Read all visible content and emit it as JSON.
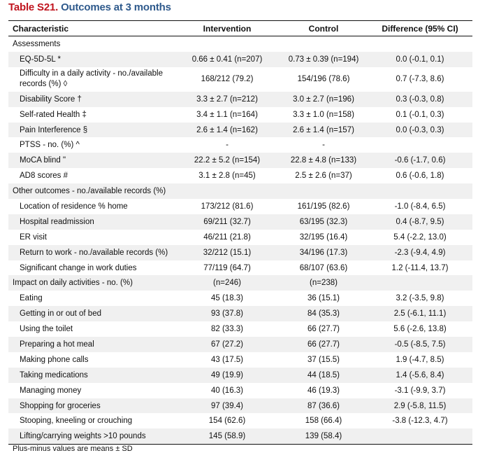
{
  "title": {
    "label": "Table S21.",
    "text": "Outcomes at 3 months"
  },
  "columns": [
    "Characteristic",
    "Intervention",
    "Control",
    "Difference (95% CI)"
  ],
  "rows": [
    {
      "type": "section",
      "label": "Assessments",
      "intervention": "",
      "control": "",
      "difference": ""
    },
    {
      "label": "EQ-5D-5L *",
      "intervention": "0.66 ± 0.41 (n=207)",
      "control": "0.73 ± 0.39 (n=194)",
      "difference": "0.0 (-0.1, 0.1)"
    },
    {
      "label": "Difficulty in a daily activity - no./available records (%) ◊",
      "intervention": "168/212 (79.2)",
      "control": "154/196 (78.6)",
      "difference": "0.7 (-7.3, 8.6)",
      "tall": true
    },
    {
      "label": "Disability Score †",
      "intervention": "3.3 ± 2.7 (n=212)",
      "control": "3.0 ± 2.7 (n=196)",
      "difference": "0.3 (-0.3, 0.8)"
    },
    {
      "label": "Self-rated Health ‡",
      "intervention": "3.4 ± 1.1 (n=164)",
      "control": "3.3 ± 1.0 (n=158)",
      "difference": "0.1 (-0.1, 0.3)"
    },
    {
      "label": "Pain Interference §",
      "intervention": "2.6 ± 1.4 (n=162)",
      "control": "2.6 ± 1.4 (n=157)",
      "difference": "0.0 (-0.3, 0.3)"
    },
    {
      "label": "PTSS - no. (%) ^",
      "intervention": "-",
      "control": "-",
      "difference": ""
    },
    {
      "label": "MoCA blind \"",
      "intervention": "22.2 ± 5.2 (n=154)",
      "control": "22.8 ± 4.8 (n=133)",
      "difference": "-0.6 (-1.7, 0.6)"
    },
    {
      "label": "AD8 scores #",
      "intervention": "3.1 ± 2.8 (n=45)",
      "control": "2.5 ± 2.6 (n=37)",
      "difference": "0.6 (-0.6, 1.8)"
    },
    {
      "type": "section",
      "label": "Other outcomes - no./available records (%)",
      "intervention": "",
      "control": "",
      "difference": ""
    },
    {
      "label": "Location of residence % home",
      "intervention": "173/212 (81.6)",
      "control": "161/195 (82.6)",
      "difference": "-1.0 (-8.4, 6.5)"
    },
    {
      "label": "Hospital readmission",
      "intervention": "69/211 (32.7)",
      "control": "63/195 (32.3)",
      "difference": "0.4 (-8.7, 9.5)"
    },
    {
      "label": "ER visit",
      "intervention": "46/211 (21.8)",
      "control": "32/195 (16.4)",
      "difference": "5.4 (-2.2, 13.0)"
    },
    {
      "label": "Return to work - no./available records (%)",
      "intervention": "32/212 (15.1)",
      "control": "34/196 (17.3)",
      "difference": "-2.3 (-9.4, 4.9)"
    },
    {
      "label": "Significant change in work duties",
      "intervention": "77/119 (64.7)",
      "control": "68/107 (63.6)",
      "difference": "1.2 (-11.4, 13.7)"
    },
    {
      "type": "section",
      "label": "Impact on daily activities - no. (%)",
      "intervention": "(n=246)",
      "control": "(n=238)",
      "difference": ""
    },
    {
      "label": "Eating",
      "intervention": "45 (18.3)",
      "control": "36 (15.1)",
      "difference": "3.2 (-3.5, 9.8)"
    },
    {
      "label": "Getting in or out of bed",
      "intervention": "93 (37.8)",
      "control": "84 (35.3)",
      "difference": "2.5 (-6.1, 11.1)"
    },
    {
      "label": "Using the toilet",
      "intervention": "82 (33.3)",
      "control": "66 (27.7)",
      "difference": "5.6 (-2.6, 13.8)"
    },
    {
      "label": "Preparing a hot meal",
      "intervention": "67 (27.2)",
      "control": "66 (27.7)",
      "difference": "-0.5 (-8.5, 7.5)"
    },
    {
      "label": "Making phone calls",
      "intervention": "43 (17.5)",
      "control": "37 (15.5)",
      "difference": "1.9 (-4.7, 8.5)"
    },
    {
      "label": "Taking medications",
      "intervention": "49 (19.9)",
      "control": "44 (18.5)",
      "difference": "1.4 (-5.6, 8.4)"
    },
    {
      "label": "Managing money",
      "intervention": "40 (16.3)",
      "control": "46 (19.3)",
      "difference": "-3.1 (-9.9, 3.7)"
    },
    {
      "label": "Shopping for groceries",
      "intervention": "97 (39.4)",
      "control": "87 (36.6)",
      "difference": "2.9 (-5.8, 11.5)"
    },
    {
      "label": "Stooping, kneeling or crouching",
      "intervention": "154 (62.6)",
      "control": "158 (66.4)",
      "difference": "-3.8 (-12.3, 4.7)"
    },
    {
      "label": "Lifting/carrying weights >10 pounds",
      "intervention": "145 (58.9)",
      "control": "139 (58.4)",
      "difference": ""
    }
  ],
  "footnote": "Plus-minus values are means ± SD"
}
